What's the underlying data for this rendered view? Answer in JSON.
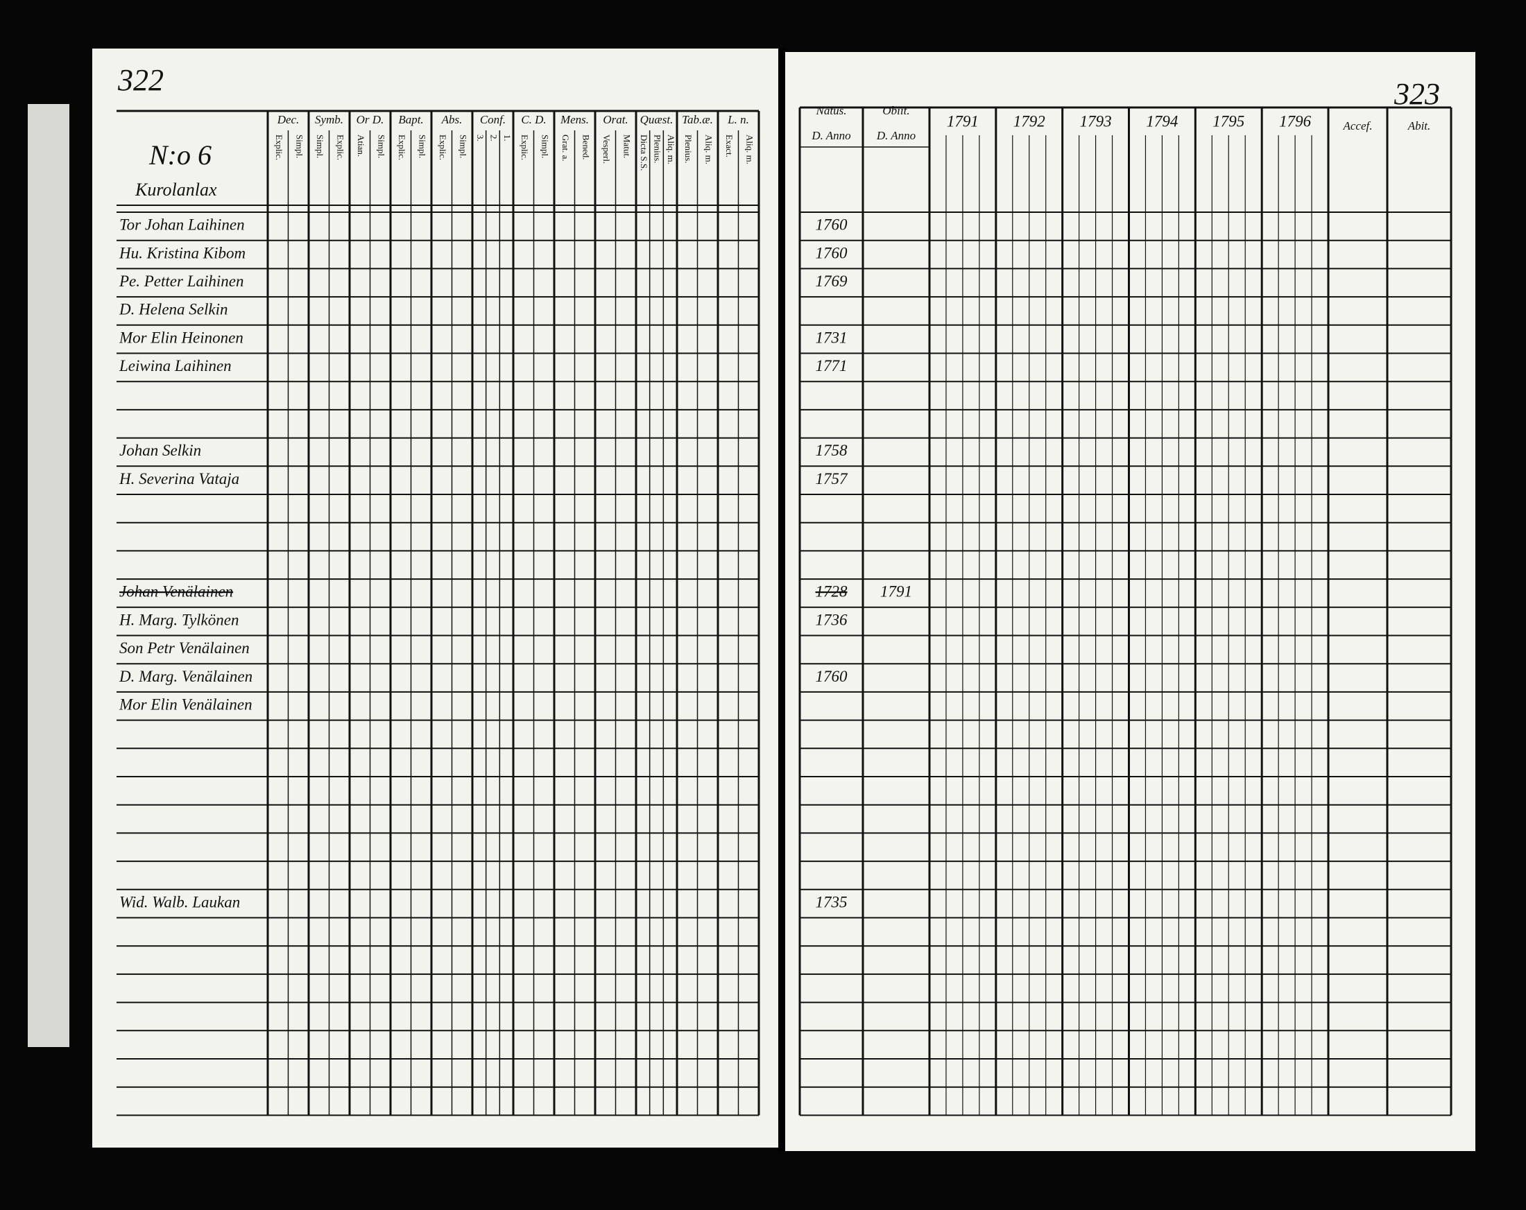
{
  "left_page": {
    "page_number": "322",
    "section": "N:o 6",
    "village": "Kurolanlax",
    "column_groups": [
      {
        "title": "Dec.",
        "subs": [
          "Explic.",
          "Simpl."
        ]
      },
      {
        "title": "Symb.",
        "subs": [
          "Simpl.",
          "Explic."
        ]
      },
      {
        "title": "Or D.",
        "subs": [
          "Atian.",
          "Simpl."
        ]
      },
      {
        "title": "Bapt.",
        "subs": [
          "Explic.",
          "Simpl."
        ]
      },
      {
        "title": "Abs.",
        "subs": [
          "Explic.",
          "Simpl."
        ]
      },
      {
        "title": "Conf.",
        "subs": [
          "3.",
          "2.",
          "1."
        ]
      },
      {
        "title": "C. D.",
        "subs": [
          "Explic.",
          "Simpl."
        ]
      },
      {
        "title": "Mens.",
        "subs": [
          "Grat. a.",
          "Bened."
        ]
      },
      {
        "title": "Orat.",
        "subs": [
          "Vesperl.",
          "Matut."
        ]
      },
      {
        "title": "Quæst.",
        "subs": [
          "Dicta S.S.",
          "Plenius.",
          "Aliq. m."
        ]
      },
      {
        "title": "Tab.æ.",
        "subs": [
          "Plenius.",
          "Aliq. m."
        ]
      },
      {
        "title": "L. n.",
        "subs": [
          "Exact.",
          "Aliq. m."
        ]
      }
    ],
    "entries": [
      {
        "name": "Tor Johan Laihinen"
      },
      {
        "name": "Hu. Kristina Kibom"
      },
      {
        "name": "Pe. Petter Laihinen"
      },
      {
        "name": "D. Helena Selkin"
      },
      {
        "name": "Mor Elin Heinonen"
      },
      {
        "name": "Leiwina Laihinen"
      },
      {
        "name": "Johan Selkin"
      },
      {
        "name": "H. Severina Vataja"
      },
      {
        "name": "Johan Venälainen"
      },
      {
        "name": "H. Marg. Tylkönen"
      },
      {
        "name": "Son Petr Venälainen"
      },
      {
        "name": "D. Marg. Venälainen"
      },
      {
        "name": "Mor Elin Venälainen"
      },
      {
        "name": "Wid. Walb. Laukan"
      }
    ]
  },
  "right_page": {
    "page_number": "323",
    "natus": {
      "title": "Natus.",
      "sub": "D. Anno"
    },
    "obiit": {
      "title": "Obiit.",
      "sub": "D. Anno"
    },
    "years": [
      "1791",
      "1792",
      "1793",
      "1794",
      "1795",
      "1796"
    ],
    "accessit": "Accef.",
    "abiit": "Abit.",
    "entries": [
      {
        "born": "1760"
      },
      {
        "born": "1760"
      },
      {
        "born": "1769"
      },
      {
        "born": "1731"
      },
      {
        "born": "1771"
      },
      {
        "born": "1758"
      },
      {
        "born": "1757"
      },
      {
        "born": "1728",
        "died": "1791"
      },
      {
        "born": "1736"
      },
      {
        "born": "1760"
      },
      {
        "born": "1735"
      }
    ]
  }
}
